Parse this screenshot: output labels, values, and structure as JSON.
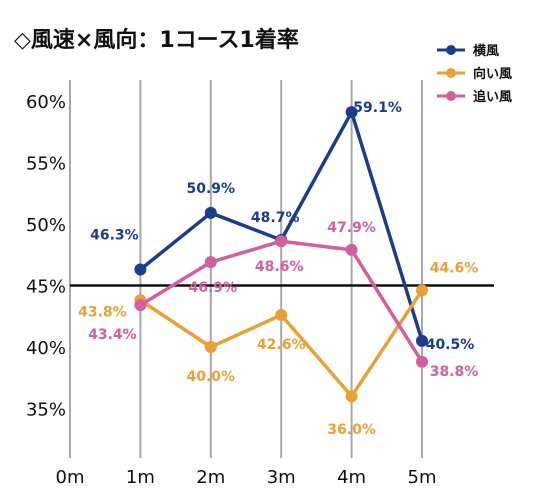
{
  "chart_data": {
    "type": "line",
    "title": "◇風速×風向：1コース1着率",
    "categories": [
      "0m",
      "1m",
      "2m",
      "3m",
      "4m",
      "5m"
    ],
    "y_ticks": [
      "60%",
      "55%",
      "50%",
      "45%",
      "40%",
      "35%"
    ],
    "ylim": [
      31,
      62
    ],
    "reference_line": 45,
    "grid": "vertical",
    "legend_position": "top-right",
    "series": [
      {
        "name": "横風",
        "color": "#1c3c8c",
        "values": [
          null,
          46.3,
          50.9,
          48.7,
          59.1,
          40.5
        ],
        "labels": [
          null,
          "46.3%",
          "50.9%",
          "48.7%",
          "59.1%",
          "40.5%"
        ]
      },
      {
        "name": "向い風",
        "color": "#e8a136",
        "values": [
          null,
          43.8,
          40.0,
          42.6,
          36.0,
          44.6
        ],
        "labels": [
          null,
          "43.8%",
          "40.0%",
          "42.6%",
          "36.0%",
          "44.6%"
        ]
      },
      {
        "name": "追い風",
        "color": "#d1609c",
        "values": [
          null,
          43.4,
          46.9,
          48.6,
          47.9,
          38.8
        ],
        "labels": [
          null,
          "43.4%",
          "46.9%",
          "48.6%",
          "47.9%",
          "38.8%"
        ]
      }
    ]
  }
}
